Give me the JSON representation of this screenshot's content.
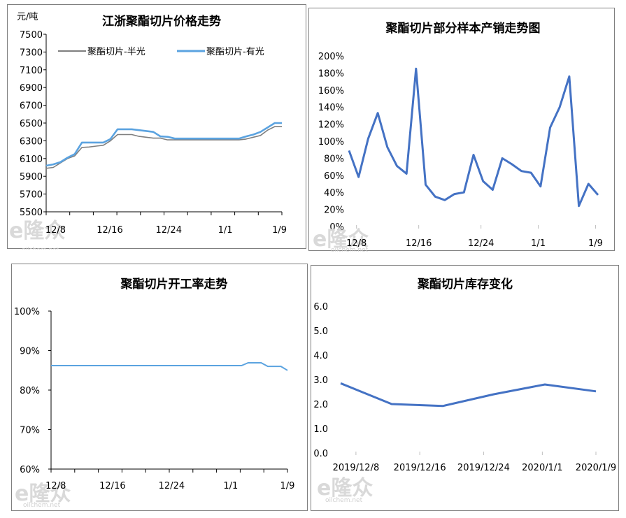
{
  "watermark": {
    "brand": "隆众",
    "site": "oilchem.net"
  },
  "chart_data": [
    {
      "id": "price",
      "type": "line",
      "title": "江浙聚酯切片价格走势",
      "ylabel": "元/吨",
      "ylim": [
        5500,
        7500
      ],
      "yticks": [
        "7500",
        "7300",
        "7100",
        "6900",
        "6700",
        "6500",
        "6300",
        "6100",
        "5900",
        "5700",
        "5500"
      ],
      "x_tick_labels": [
        "12/8",
        "12/16",
        "12/24",
        "1/1",
        "1/9"
      ],
      "legend_position": "top-left",
      "series": [
        {
          "name": "聚酯切片-半光",
          "color": "#7f7f7f",
          "values": [
            5990,
            6000,
            6050,
            6100,
            6130,
            6225,
            6230,
            6240,
            6250,
            6300,
            6370,
            6370,
            6370,
            6350,
            6340,
            6330,
            6330,
            6310,
            6310,
            6310,
            6310,
            6310,
            6310,
            6310,
            6310,
            6310,
            6310,
            6310,
            6320,
            6340,
            6360,
            6420,
            6460,
            6460
          ]
        },
        {
          "name": "聚酯切片-有光",
          "color": "#5ba3e0",
          "values": [
            6020,
            6035,
            6060,
            6110,
            6150,
            6280,
            6280,
            6280,
            6280,
            6320,
            6430,
            6430,
            6430,
            6420,
            6410,
            6400,
            6350,
            6345,
            6325,
            6325,
            6325,
            6325,
            6325,
            6325,
            6325,
            6325,
            6325,
            6325,
            6350,
            6370,
            6400,
            6450,
            6500,
            6500
          ]
        }
      ]
    },
    {
      "id": "sales",
      "type": "line",
      "title": "聚酯切片部分样本产销走势图",
      "ylim": [
        0,
        200
      ],
      "yticks": [
        "200%",
        "180%",
        "160%",
        "140%",
        "120%",
        "100%",
        "80%",
        "60%",
        "40%",
        "20%",
        "0%"
      ],
      "x_tick_labels": [
        "12/8",
        "12/16",
        "12/24",
        "1/1",
        "1/9"
      ],
      "series": [
        {
          "name": "",
          "color": "#4472c4",
          "values": [
            89,
            58,
            103,
            133,
            93,
            71,
            62,
            185,
            49,
            35,
            31,
            38,
            40,
            84,
            53,
            43,
            80,
            73,
            65,
            63,
            47,
            116,
            140,
            176,
            24,
            50,
            37
          ]
        }
      ]
    },
    {
      "id": "rate",
      "type": "line",
      "title": "聚酯切片开工率走势",
      "ylim": [
        60,
        100
      ],
      "yticks": [
        "100%",
        "90%",
        "80%",
        "70%",
        "60%"
      ],
      "x_tick_labels": [
        "12/8",
        "12/16",
        "12/24",
        "1/1",
        "1/9"
      ],
      "series": [
        {
          "name": "",
          "color": "#5ba3e0",
          "values": [
            86.2,
            86.2,
            86.2,
            86.2,
            86.2,
            86.2,
            86.2,
            86.2,
            86.2,
            86.2,
            86.2,
            86.2,
            86.2,
            86.2,
            86.2,
            86.2,
            86.2,
            86.2,
            86.2,
            86.2,
            86.2,
            86.2,
            86.2,
            86.2,
            86.2,
            86.2,
            86.2,
            86.2,
            86.2,
            86.2,
            86.9,
            86.9,
            86.9,
            86.0,
            86.0,
            86.0,
            85.0
          ]
        }
      ]
    },
    {
      "id": "inventory",
      "type": "line",
      "title": "聚酯切片库存变化",
      "ylim": [
        0,
        6.0
      ],
      "yticks": [
        "6.0",
        "5.0",
        "4.0",
        "3.0",
        "2.0",
        "1.0",
        "0.0"
      ],
      "x_tick_labels": [
        "2019/12/8",
        "2019/12/16",
        "2019/12/24",
        "2020/1/1",
        "2020/1/9"
      ],
      "series": [
        {
          "name": "",
          "color": "#4472c4",
          "values": [
            2.85,
            2.0,
            1.92,
            2.4,
            2.8,
            2.52
          ]
        }
      ]
    }
  ]
}
